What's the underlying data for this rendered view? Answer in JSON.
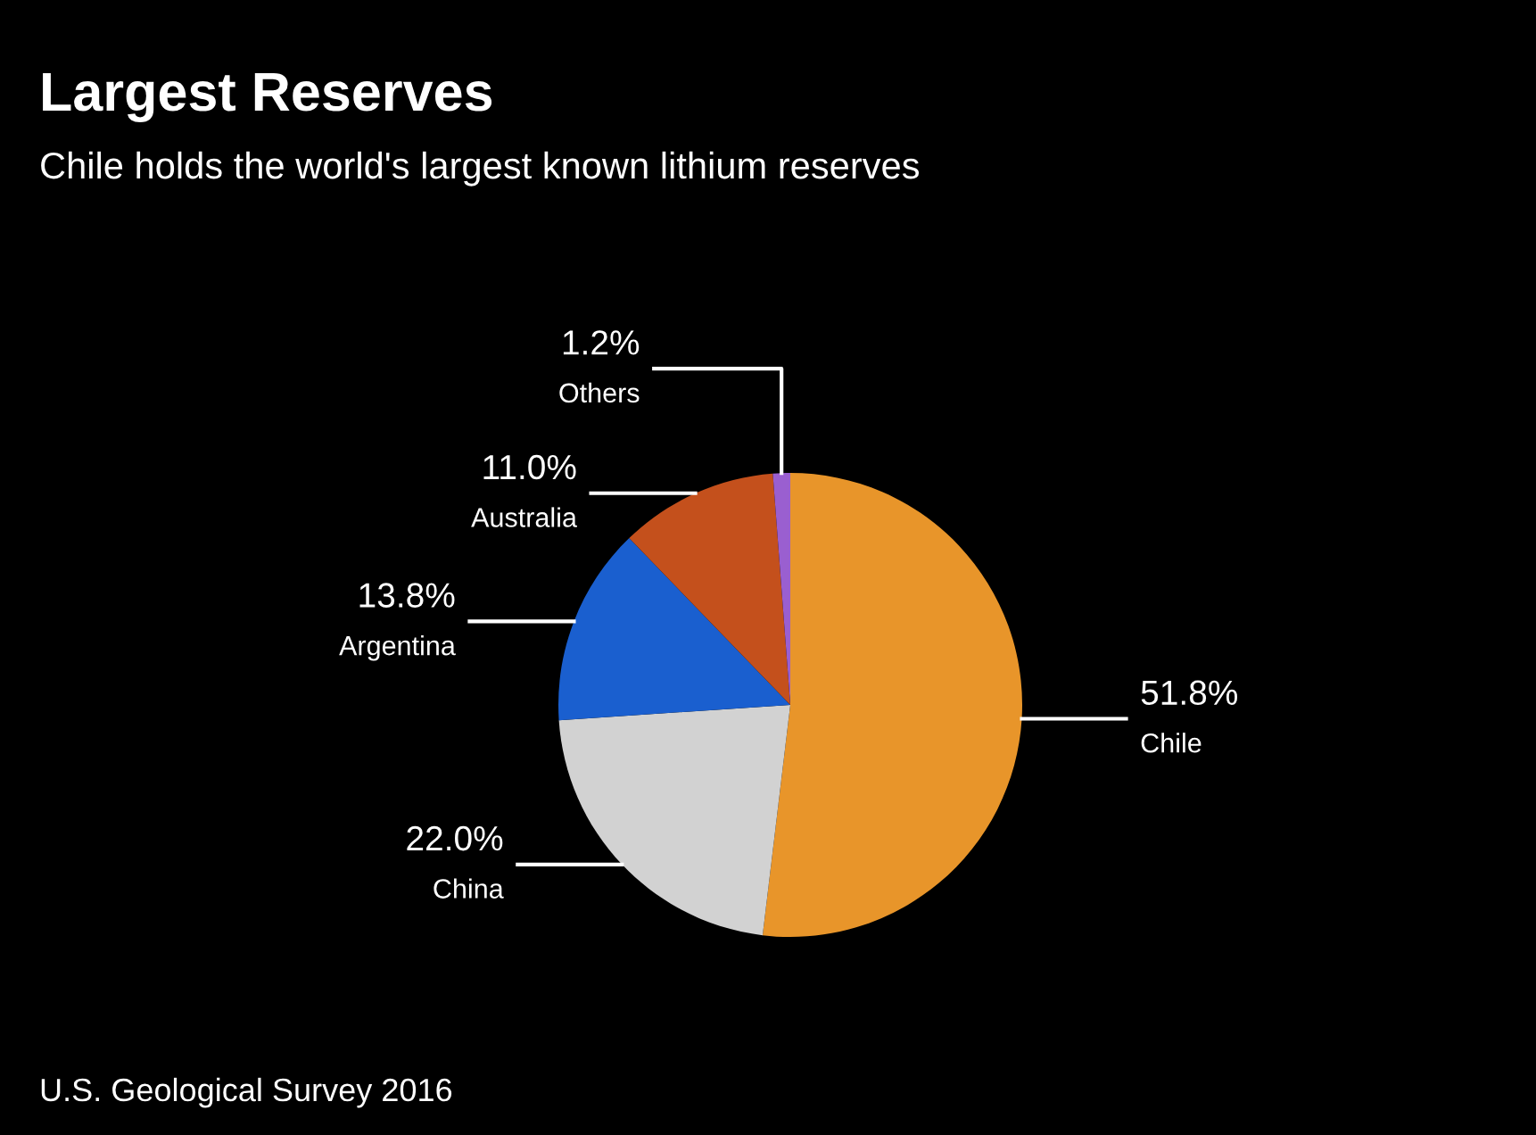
{
  "chart_data": {
    "type": "pie",
    "title": "Largest Reserves",
    "subtitle": "Chile holds the world's largest known lithium reserves",
    "categories": [
      "Chile",
      "China",
      "Argentina",
      "Australia",
      "Others"
    ],
    "values": [
      51.8,
      22.0,
      13.8,
      11.0,
      1.2
    ],
    "value_labels": [
      "51.8%",
      "22.0%",
      "13.8%",
      "11.0%",
      "1.2%"
    ],
    "colors": [
      "#e8952a",
      "#d2d2d2",
      "#1a5fcf",
      "#c4501c",
      "#9a5fd0"
    ],
    "annotations": [
      "U.S. Geological Survey 2016"
    ]
  }
}
